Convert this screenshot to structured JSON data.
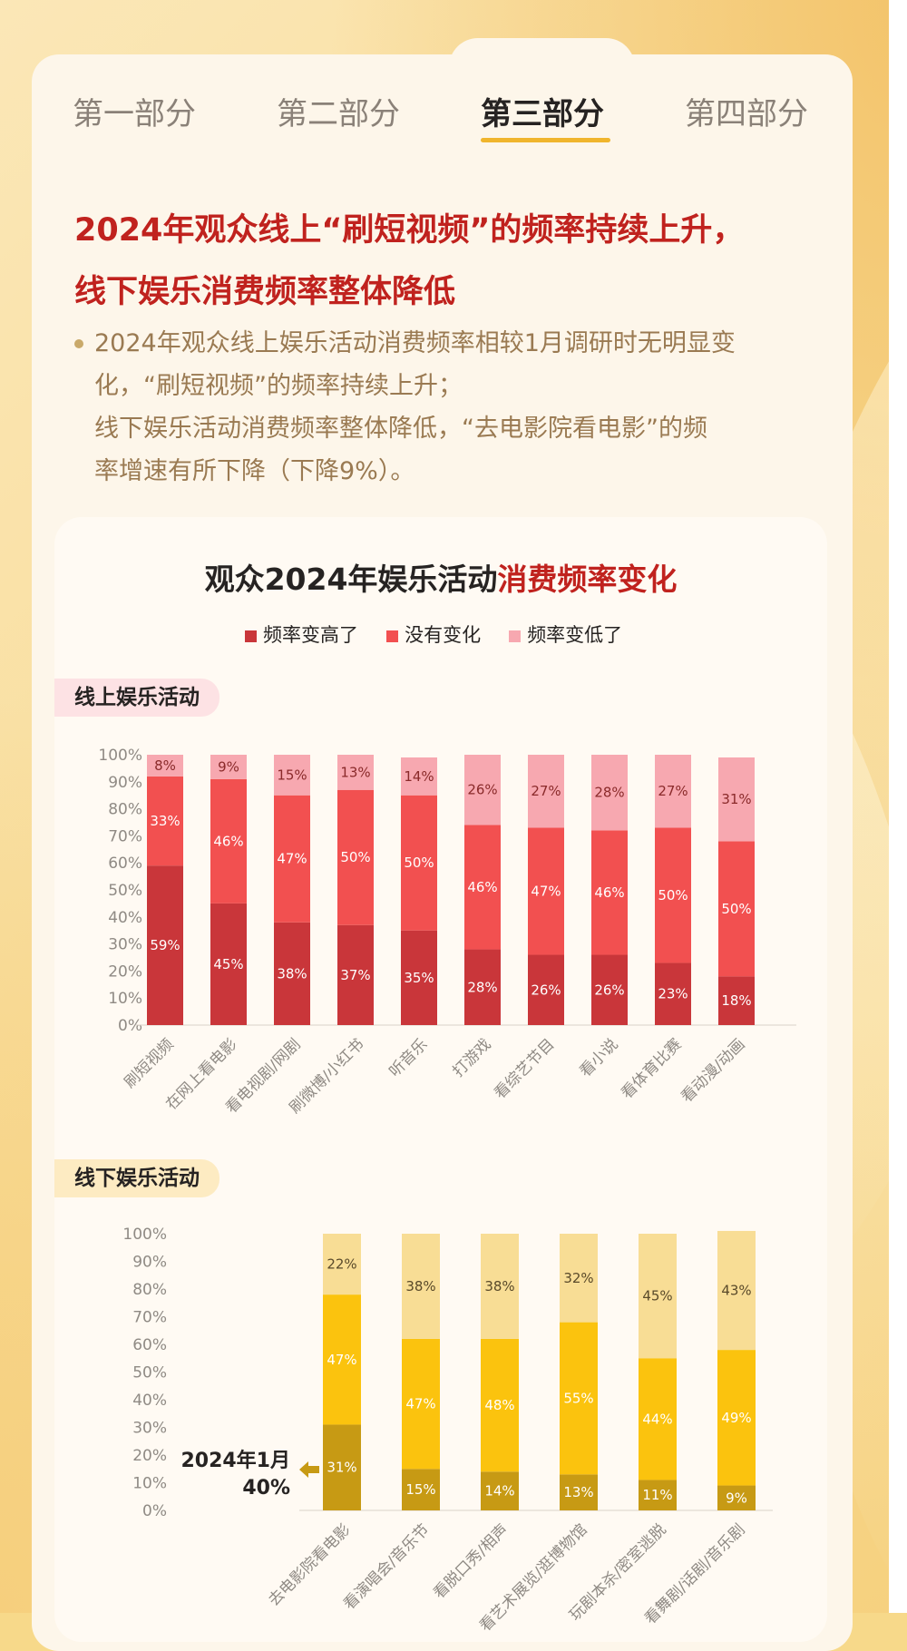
{
  "tabs": [
    {
      "label": "第一部分",
      "active": false
    },
    {
      "label": "第二部分",
      "active": false
    },
    {
      "label": "第三部分",
      "active": true
    },
    {
      "label": "第四部分",
      "active": false
    }
  ],
  "headline": {
    "line1": "2024年观众线上“刷短视频”的频率持续上升，",
    "line2": "线下娱乐消费频率整体降低"
  },
  "bullet": {
    "line1": "2024年观众线上娱乐活动消费频率相较1月调研时无明显变",
    "line2": "化，“刷短视频”的频率持续上升；",
    "line3": "线下娱乐活动消费频率整体降低，“去电影院看电影”的频",
    "line4": "率增速有所下降（下降9%）。"
  },
  "chart_title": {
    "part1": "观众2024年娱乐活动",
    "part2": "消费频率变化"
  },
  "legend": [
    "频率变高了",
    "没有变化",
    "频率变低了"
  ],
  "colors": {
    "online": [
      "#c9363a",
      "#f25050",
      "#f7a8b0"
    ],
    "offline": [
      "#c79a14",
      "#fbc30e",
      "#f8dd95"
    ],
    "headline": "#c0221e",
    "tab_underline": "#f0b52d"
  },
  "chart_data": [
    {
      "type": "bar",
      "stacked": true,
      "section_label": "线上娱乐活动",
      "categories": [
        "刷短视频",
        "在网上看电影",
        "看电视剧/网剧",
        "刷微博/小红书",
        "听音乐",
        "打游戏",
        "看综艺节目",
        "看小说",
        "看体育比赛",
        "看动漫/动画"
      ],
      "series": [
        {
          "name": "频率变高了",
          "values": [
            59,
            45,
            38,
            37,
            35,
            28,
            26,
            26,
            23,
            18
          ]
        },
        {
          "name": "没有变化",
          "values": [
            33,
            46,
            47,
            50,
            50,
            46,
            47,
            46,
            50,
            50
          ]
        },
        {
          "name": "频率变低了",
          "values": [
            8,
            9,
            15,
            13,
            14,
            26,
            27,
            28,
            27,
            31
          ]
        }
      ],
      "ylim": [
        0,
        100
      ],
      "yticks": [
        "0%",
        "10%",
        "20%",
        "30%",
        "40%",
        "50%",
        "60%",
        "70%",
        "80%",
        "90%",
        "100%"
      ],
      "legend_position": "top"
    },
    {
      "type": "bar",
      "stacked": true,
      "section_label": "线下娱乐活动",
      "categories": [
        "去电影院看电影",
        "看演唱会/音乐节",
        "看脱口秀/相声",
        "看艺术展览/逛博物馆",
        "玩剧本杀/密室逃脱",
        "看舞剧/话剧/音乐剧"
      ],
      "series": [
        {
          "name": "频率变高了",
          "values": [
            31,
            15,
            14,
            13,
            11,
            9
          ]
        },
        {
          "name": "没有变化",
          "values": [
            47,
            47,
            48,
            55,
            44,
            49
          ]
        },
        {
          "name": "频率变低了",
          "values": [
            22,
            38,
            38,
            32,
            45,
            43
          ]
        }
      ],
      "ylim": [
        0,
        100
      ],
      "yticks": [
        "0%",
        "10%",
        "20%",
        "30%",
        "40%",
        "50%",
        "60%",
        "70%",
        "80%",
        "90%",
        "100%"
      ],
      "annotation": {
        "line1": "2024年1月",
        "line2": "40%"
      }
    }
  ]
}
